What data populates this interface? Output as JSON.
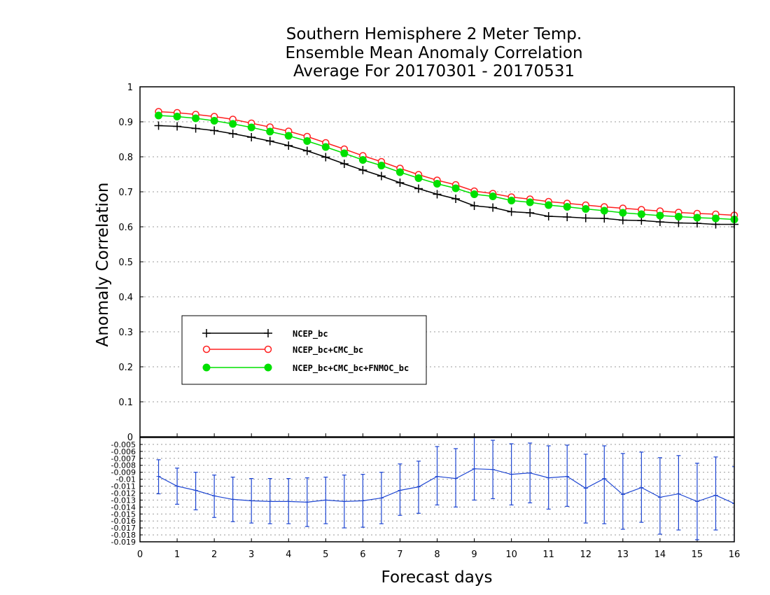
{
  "chart_data": [
    {
      "type": "line",
      "title": [
        "Southern Hemisphere 2 Meter Temp.",
        "Ensemble Mean Anomaly Correlation",
        "Average For 20170301 - 20170531"
      ],
      "xlabel": "Forecast days",
      "ylabel": "Anomaly Correlation",
      "xlim": [
        0,
        16
      ],
      "ylim": [
        0,
        1
      ],
      "x_ticks": [
        "0",
        "1",
        "2",
        "3",
        "4",
        "5",
        "6",
        "7",
        "8",
        "9",
        "10",
        "11",
        "12",
        "13",
        "14",
        "15",
        "16"
      ],
      "y_ticks": [
        "0",
        "0.1",
        "0.2",
        "0.3",
        "0.4",
        "0.5",
        "0.6",
        "0.7",
        "0.8",
        "0.9",
        "1"
      ],
      "grid": "horizontal dotted",
      "legend_position": "lower-left",
      "x": [
        0.5,
        1,
        1.5,
        2,
        2.5,
        3,
        3.5,
        4,
        4.5,
        5,
        5.5,
        6,
        6.5,
        7,
        7.5,
        8,
        8.5,
        9,
        9.5,
        10,
        10.5,
        11,
        11.5,
        12,
        12.5,
        13,
        13.5,
        14,
        14.5,
        15,
        15.5,
        16
      ],
      "series": [
        {
          "name": "NCEP_bc",
          "color": "#000000",
          "marker": "plus",
          "values": [
            0.889,
            0.887,
            0.881,
            0.875,
            0.866,
            0.856,
            0.845,
            0.832,
            0.817,
            0.799,
            0.78,
            0.762,
            0.745,
            0.726,
            0.709,
            0.693,
            0.68,
            0.66,
            0.655,
            0.643,
            0.64,
            0.63,
            0.628,
            0.625,
            0.624,
            0.619,
            0.618,
            0.614,
            0.611,
            0.61,
            0.607,
            0.607
          ]
        },
        {
          "name": "NCEP_bc+CMC_bc",
          "color": "#ff2020",
          "marker": "open-circle",
          "values": [
            0.929,
            0.926,
            0.921,
            0.915,
            0.907,
            0.896,
            0.885,
            0.873,
            0.858,
            0.84,
            0.822,
            0.803,
            0.786,
            0.767,
            0.749,
            0.733,
            0.72,
            0.702,
            0.695,
            0.685,
            0.679,
            0.672,
            0.667,
            0.662,
            0.657,
            0.653,
            0.649,
            0.645,
            0.641,
            0.638,
            0.636,
            0.633
          ]
        },
        {
          "name": "NCEP_bc+CMC_bc+FNMOC_bc",
          "color": "#00e000",
          "marker": "filled-circle",
          "values": [
            0.918,
            0.915,
            0.91,
            0.903,
            0.894,
            0.884,
            0.872,
            0.86,
            0.845,
            0.828,
            0.81,
            0.791,
            0.775,
            0.756,
            0.739,
            0.723,
            0.71,
            0.693,
            0.687,
            0.675,
            0.67,
            0.662,
            0.657,
            0.651,
            0.646,
            0.64,
            0.636,
            0.632,
            0.629,
            0.626,
            0.624,
            0.621
          ]
        }
      ]
    },
    {
      "type": "line",
      "ylim": [
        -0.019,
        -0.004
      ],
      "y_ticks": [
        "-0.005",
        "-0.006",
        "-0.007",
        "-0.008",
        "-0.009",
        "-0.01",
        "-0.011",
        "-0.012",
        "-0.013",
        "-0.014",
        "-0.015",
        "-0.016",
        "-0.017",
        "-0.018",
        "-0.019"
      ],
      "grid": "horizontal dotted",
      "color": "#1e46d2",
      "x": [
        0.5,
        1,
        1.5,
        2,
        2.5,
        3,
        3.5,
        4,
        4.5,
        5,
        5.5,
        6,
        6.5,
        7,
        7.5,
        8,
        8.5,
        9,
        9.5,
        10,
        10.5,
        11,
        11.5,
        12,
        12.5,
        13,
        13.5,
        14,
        14.5,
        15,
        15.5,
        16
      ],
      "values": [
        -0.0096,
        -0.011,
        -0.0116,
        -0.0124,
        -0.0129,
        -0.0131,
        -0.0132,
        -0.0132,
        -0.0133,
        -0.013,
        -0.0132,
        -0.0131,
        -0.0127,
        -0.0116,
        -0.0111,
        -0.0096,
        -0.0099,
        -0.0085,
        -0.0086,
        -0.0093,
        -0.0091,
        -0.0098,
        -0.0096,
        -0.0113,
        -0.0099,
        -0.0122,
        -0.0112,
        -0.0126,
        -0.0121,
        -0.0132,
        -0.0123,
        -0.0135
      ],
      "error_low": [
        -0.0121,
        -0.0136,
        -0.0144,
        -0.0155,
        -0.0161,
        -0.0163,
        -0.0164,
        -0.0164,
        -0.0168,
        -0.0164,
        -0.017,
        -0.0169,
        -0.0164,
        -0.0152,
        -0.0149,
        -0.0137,
        -0.014,
        -0.013,
        -0.0128,
        -0.0137,
        -0.0134,
        -0.0143,
        -0.0139,
        -0.0163,
        -0.0164,
        -0.0172,
        -0.0162,
        -0.0179,
        -0.0173,
        -0.0187,
        -0.0173,
        -0.019
      ],
      "error_high": [
        -0.0072,
        -0.0084,
        -0.009,
        -0.0094,
        -0.0097,
        -0.0099,
        -0.0099,
        -0.0099,
        -0.0098,
        -0.0097,
        -0.0094,
        -0.0093,
        -0.009,
        -0.0078,
        -0.0074,
        -0.0053,
        -0.0056,
        -0.004,
        -0.0044,
        -0.0049,
        -0.0048,
        -0.0052,
        -0.0051,
        -0.0064,
        -0.0052,
        -0.0063,
        -0.0061,
        -0.0069,
        -0.0066,
        -0.0077,
        -0.0068,
        -0.0082
      ]
    }
  ]
}
